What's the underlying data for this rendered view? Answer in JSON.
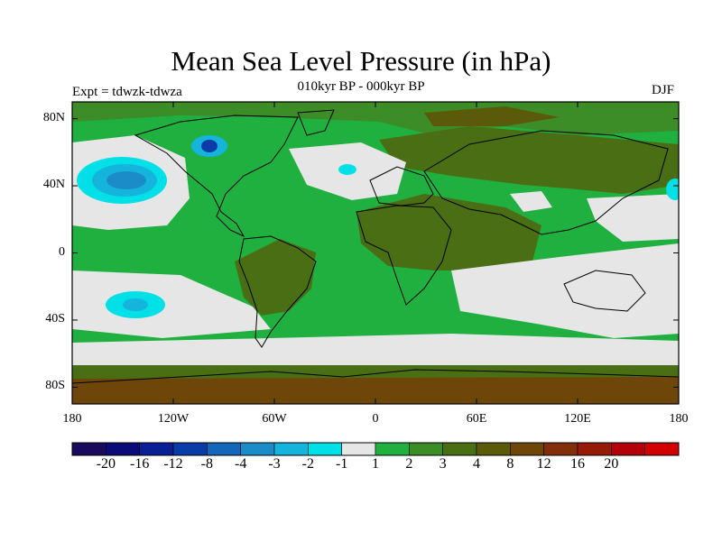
{
  "title": "Mean Sea Level Pressure (in hPa)",
  "subtitle": "010kyr BP - 000kyr BP",
  "experiment": "Expt = tdwzk-tdwza",
  "season": "DJF",
  "map": {
    "lon_range": [
      -180,
      180
    ],
    "lat_range": [
      -90,
      90
    ],
    "x_ticks": [
      {
        "lon": -180,
        "label": "180"
      },
      {
        "lon": -120,
        "label": "120W"
      },
      {
        "lon": -60,
        "label": "60W"
      },
      {
        "lon": 0,
        "label": "0"
      },
      {
        "lon": 60,
        "label": "60E"
      },
      {
        "lon": 120,
        "label": "120E"
      },
      {
        "lon": 180,
        "label": "180"
      }
    ],
    "y_ticks": [
      {
        "lat": 80,
        "label": "80N"
      },
      {
        "lat": 40,
        "label": "40N"
      },
      {
        "lat": 0,
        "label": "0"
      },
      {
        "lat": -40,
        "label": "40S"
      },
      {
        "lat": -80,
        "label": "80S"
      }
    ]
  },
  "colorbar": {
    "colors": [
      "#1a0a5c",
      "#0a0a78",
      "#0a1e96",
      "#0a3ca8",
      "#1466b8",
      "#1c8cc8",
      "#14b4dc",
      "#00e0e6",
      "#e6e6e6",
      "#20b040",
      "#3c8c28",
      "#4a6e14",
      "#5a5a0a",
      "#6e460a",
      "#822e0a",
      "#961a0a",
      "#b4000a",
      "#d20000"
    ],
    "labels": [
      "-20",
      "-16",
      "-12",
      "-8",
      "-4",
      "-3",
      "-2",
      "-1",
      "1",
      "2",
      "3",
      "4",
      "8",
      "12",
      "16",
      "20"
    ]
  }
}
